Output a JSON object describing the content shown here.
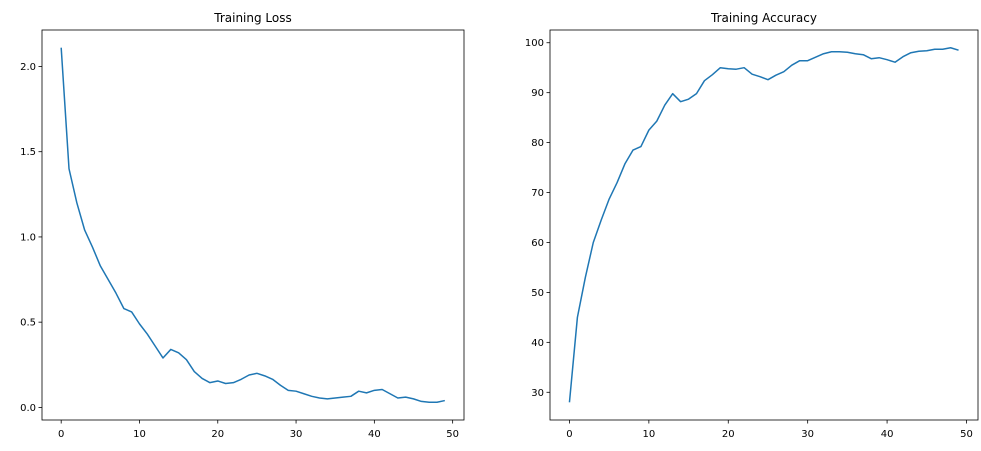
{
  "chart_data": [
    {
      "type": "line",
      "title": "Training Loss",
      "color": "#1f77b4",
      "x": [
        0,
        1,
        2,
        3,
        4,
        5,
        6,
        7,
        8,
        9,
        10,
        11,
        12,
        13,
        14,
        15,
        16,
        17,
        18,
        19,
        20,
        21,
        22,
        23,
        24,
        25,
        26,
        27,
        28,
        29,
        30,
        31,
        32,
        33,
        34,
        35,
        36,
        37,
        38,
        39,
        40,
        41,
        42,
        43,
        44,
        45,
        46,
        47,
        48,
        49
      ],
      "values": [
        2.11,
        1.4,
        1.2,
        1.04,
        0.94,
        0.83,
        0.75,
        0.67,
        0.58,
        0.56,
        0.49,
        0.43,
        0.36,
        0.29,
        0.34,
        0.32,
        0.28,
        0.21,
        0.17,
        0.145,
        0.155,
        0.14,
        0.145,
        0.165,
        0.19,
        0.2,
        0.185,
        0.165,
        0.13,
        0.1,
        0.095,
        0.08,
        0.065,
        0.055,
        0.05,
        0.055,
        0.06,
        0.065,
        0.095,
        0.085,
        0.1,
        0.105,
        0.08,
        0.055,
        0.06,
        0.05,
        0.035,
        0.03,
        0.03,
        0.04
      ],
      "xlim": [
        -2.45,
        51.45
      ],
      "xticks": [
        0,
        10,
        20,
        30,
        40,
        50
      ],
      "ylim": [
        -0.074,
        2.214
      ],
      "yticks": [
        {
          "value": 0,
          "label": "0.0"
        },
        0.5,
        {
          "value": 1,
          "label": "1.0"
        },
        1.5,
        {
          "value": 2,
          "label": "2.0"
        }
      ]
    },
    {
      "type": "line",
      "title": "Training Accuracy",
      "color": "#1f77b4",
      "x": [
        0,
        1,
        2,
        3,
        4,
        5,
        6,
        7,
        8,
        9,
        10,
        11,
        12,
        13,
        14,
        15,
        16,
        17,
        18,
        19,
        20,
        21,
        22,
        23,
        24,
        25,
        26,
        27,
        28,
        29,
        30,
        31,
        32,
        33,
        34,
        35,
        36,
        37,
        38,
        39,
        40,
        41,
        42,
        43,
        44,
        45,
        46,
        47,
        48,
        49
      ],
      "values": [
        28,
        45,
        53,
        60,
        64.5,
        68.7,
        72,
        75.8,
        78.5,
        79.2,
        82.5,
        84.3,
        87.5,
        89.8,
        88.2,
        88.7,
        89.8,
        92.4,
        93.6,
        95,
        94.8,
        94.7,
        95,
        93.7,
        93.2,
        92.6,
        93.5,
        94.2,
        95.5,
        96.4,
        96.4,
        97.1,
        97.8,
        98.2,
        98.2,
        98.1,
        97.8,
        97.6,
        96.8,
        97,
        96.6,
        96.1,
        97.2,
        98,
        98.3,
        98.4,
        98.7,
        98.7,
        99,
        98.5
      ],
      "xlim": [
        -2.45,
        51.45
      ],
      "xticks": [
        0,
        10,
        20,
        30,
        40,
        50
      ],
      "ylim": [
        24.45,
        102.55
      ],
      "yticks": [
        30,
        40,
        50,
        60,
        70,
        80,
        90,
        100
      ]
    }
  ]
}
